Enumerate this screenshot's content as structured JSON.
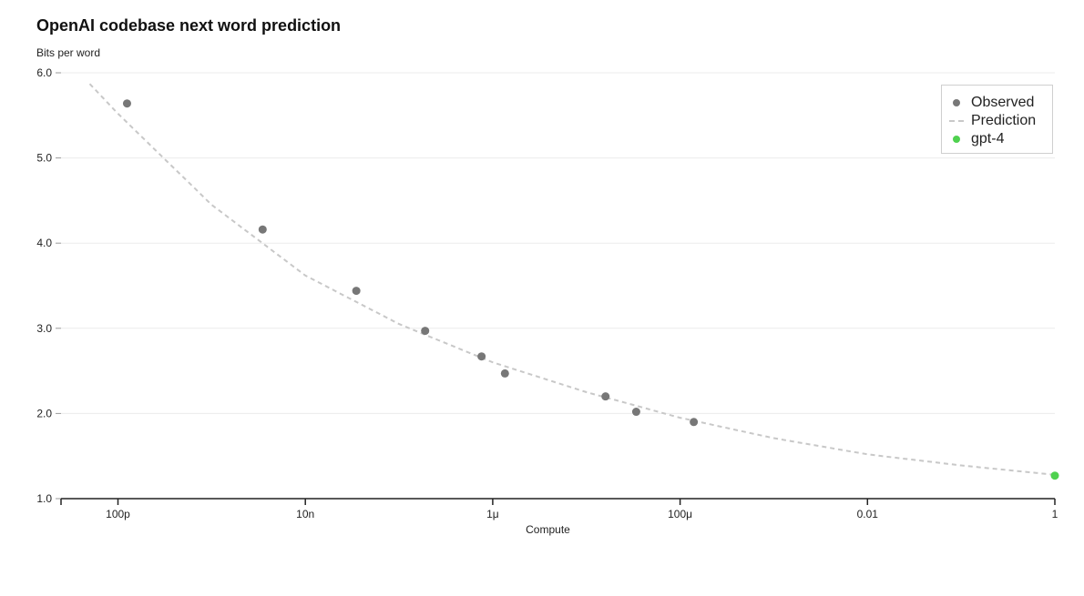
{
  "chart_data": {
    "type": "scatter",
    "title": "OpenAI codebase next word prediction",
    "ylabel": "Bits per word",
    "xlabel": "Compute",
    "x_scale": "log",
    "xlim": [
      1e-11,
      1
    ],
    "ylim": [
      1.0,
      6.0
    ],
    "y_ticks": [
      1.0,
      2.0,
      3.0,
      4.0,
      5.0,
      6.0
    ],
    "y_tick_labels": [
      "1.0",
      "2.0",
      "3.0",
      "4.0",
      "5.0",
      "6.0"
    ],
    "x_ticks": [
      1e-10,
      1e-08,
      1e-06,
      0.0001,
      0.01,
      1
    ],
    "x_tick_labels": [
      "100p",
      "10n",
      "1μ",
      "100μ",
      "0.01",
      "1"
    ],
    "grid": "horizontal",
    "legend_position": "top-right",
    "series": [
      {
        "name": "Observed",
        "type": "scatter",
        "color": "#777777",
        "x": [
          1.25e-10,
          3.5e-09,
          3.5e-08,
          1.9e-07,
          7.6e-07,
          1.35e-06,
          1.6e-05,
          3.4e-05,
          0.00014
        ],
        "y": [
          5.64,
          4.16,
          3.44,
          2.97,
          2.67,
          2.47,
          2.2,
          2.02,
          1.9
        ]
      },
      {
        "name": "Prediction",
        "type": "line",
        "style": "dashed",
        "color": "#c8c8c8",
        "x": [
          5e-11,
          1e-10,
          1e-09,
          1e-08,
          1e-07,
          1e-06,
          1e-05,
          0.0001,
          0.001,
          0.01,
          0.1,
          1
        ],
        "y": [
          5.87,
          5.52,
          4.45,
          3.62,
          3.05,
          2.6,
          2.25,
          1.95,
          1.71,
          1.52,
          1.39,
          1.28
        ]
      },
      {
        "name": "gpt-4",
        "type": "scatter",
        "color": "#4fd14f",
        "x": [
          1
        ],
        "y": [
          1.27
        ]
      }
    ]
  }
}
